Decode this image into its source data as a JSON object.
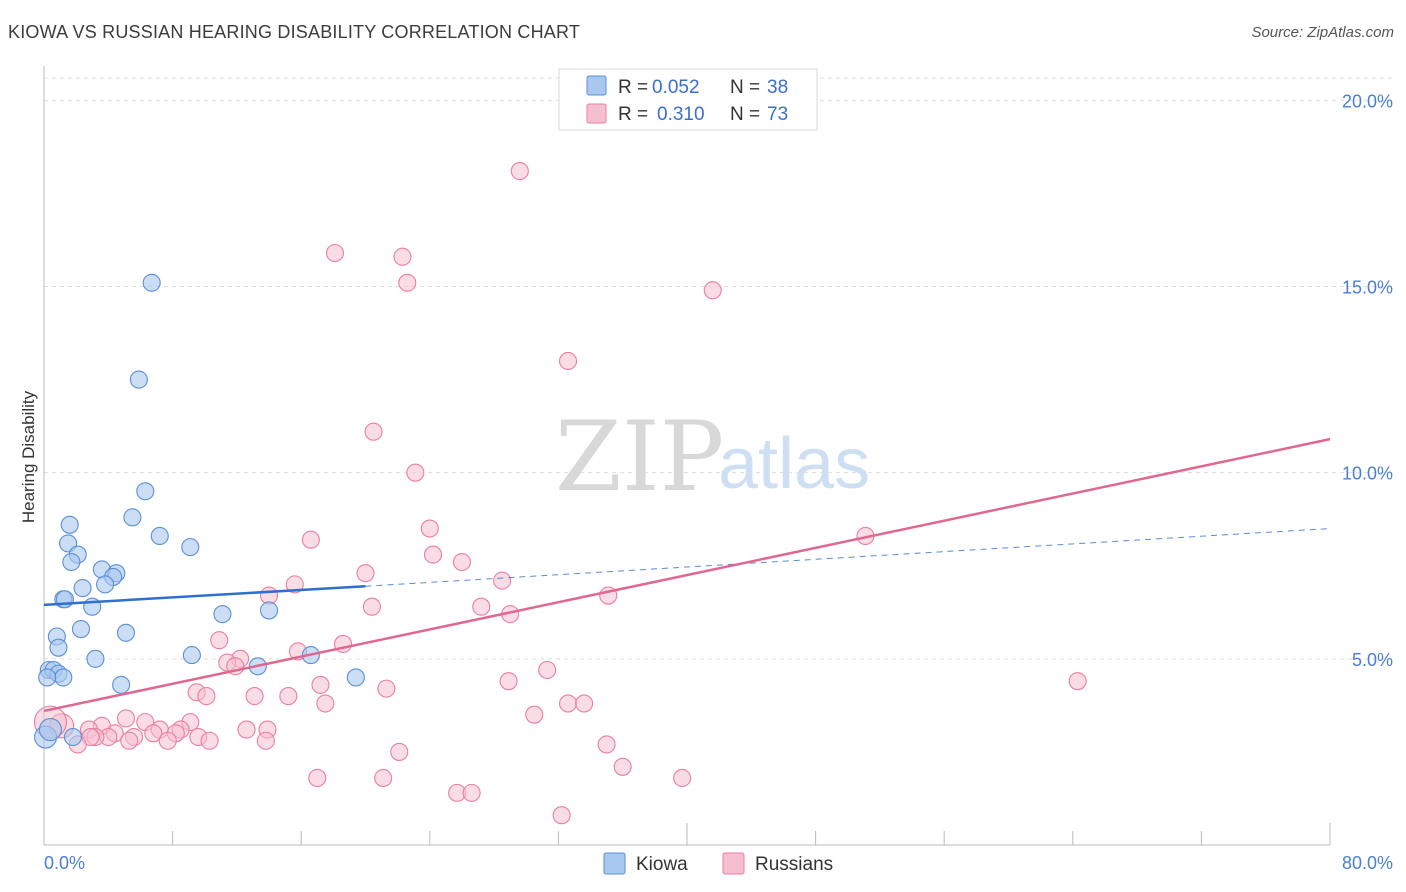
{
  "title": "KIOWA VS RUSSIAN HEARING DISABILITY CORRELATION CHART",
  "source": "Source: ZipAtlas.com",
  "watermark": {
    "zip": "ZIP",
    "atlas": "atlas"
  },
  "legend": {
    "kiowa": {
      "r_label": "R =",
      "r_value": "0.052",
      "n_label": "N =",
      "n_value": "38"
    },
    "russians": {
      "r_label": "R =",
      "r_value": "0.310",
      "n_label": "N =",
      "n_value": "73"
    }
  },
  "bottom_legend": {
    "kiowa": "Kiowa",
    "russians": "Russians"
  },
  "colors": {
    "kiowa_fill": "#a9c8f0",
    "kiowa_stroke": "#5b8fd6",
    "kiowa_line": "#2f6fcf",
    "russians_fill": "#f6bfd0",
    "russians_stroke": "#e87fa0",
    "russians_line": "#e06890",
    "grid": "#dddddd",
    "tick_label": "#4a7fd4"
  },
  "chart_data": {
    "type": "scatter",
    "title": "KIOWA VS RUSSIAN HEARING DISABILITY CORRELATION CHART",
    "xlabel": "",
    "ylabel": "Hearing Disability",
    "xlim": [
      0,
      80
    ],
    "ylim": [
      0,
      20.6
    ],
    "x_tick_labels": [
      "0.0%",
      "80.0%"
    ],
    "y_ticks": [
      5,
      10,
      15,
      20
    ],
    "y_tick_labels": [
      "5.0%",
      "10.0%",
      "15.0%",
      "20.0%"
    ],
    "grid": true,
    "legend_position": "top-center",
    "series": [
      {
        "name": "Kiowa",
        "r": 0.052,
        "n": 38,
        "trend": {
          "x": [
            0,
            20
          ],
          "y": [
            6.45,
            6.95
          ],
          "dashed_to": [
            80,
            8.5
          ]
        },
        "points": [
          [
            6.7,
            15.1
          ],
          [
            5.9,
            12.5
          ],
          [
            6.3,
            9.5
          ],
          [
            5.5,
            8.8
          ],
          [
            7.2,
            8.3
          ],
          [
            9.1,
            8.0
          ],
          [
            1.6,
            8.6
          ],
          [
            1.5,
            8.1
          ],
          [
            2.1,
            7.8
          ],
          [
            1.7,
            7.6
          ],
          [
            3.6,
            7.4
          ],
          [
            4.5,
            7.3
          ],
          [
            4.3,
            7.2
          ],
          [
            3.8,
            7.0
          ],
          [
            2.4,
            6.9
          ],
          [
            1.2,
            6.6
          ],
          [
            1.3,
            6.6
          ],
          [
            3.0,
            6.4
          ],
          [
            11.1,
            6.2
          ],
          [
            14.0,
            6.3
          ],
          [
            2.3,
            5.8
          ],
          [
            5.1,
            5.7
          ],
          [
            0.8,
            5.6
          ],
          [
            0.9,
            5.3
          ],
          [
            9.2,
            5.1
          ],
          [
            16.6,
            5.1
          ],
          [
            3.2,
            5.0
          ],
          [
            13.3,
            4.8
          ],
          [
            0.3,
            4.7
          ],
          [
            0.6,
            4.7
          ],
          [
            0.9,
            4.6
          ],
          [
            1.2,
            4.5
          ],
          [
            0.2,
            4.5
          ],
          [
            19.4,
            4.5
          ],
          [
            4.8,
            4.3
          ],
          [
            1.8,
            2.9
          ],
          [
            0.1,
            2.9
          ],
          [
            0.4,
            3.1
          ]
        ]
      },
      {
        "name": "Russians",
        "r": 0.31,
        "n": 73,
        "trend": {
          "x": [
            0,
            80
          ],
          "y": [
            3.6,
            10.9
          ]
        },
        "points": [
          [
            29.6,
            18.1
          ],
          [
            18.1,
            15.9
          ],
          [
            22.3,
            15.8
          ],
          [
            22.6,
            15.1
          ],
          [
            41.6,
            14.9
          ],
          [
            32.6,
            13.0
          ],
          [
            20.5,
            11.1
          ],
          [
            23.1,
            10.0
          ],
          [
            24.0,
            8.5
          ],
          [
            16.6,
            8.2
          ],
          [
            51.1,
            8.3
          ],
          [
            24.2,
            7.8
          ],
          [
            26.0,
            7.6
          ],
          [
            20.0,
            7.3
          ],
          [
            28.5,
            7.1
          ],
          [
            15.6,
            7.0
          ],
          [
            14.0,
            6.7
          ],
          [
            35.1,
            6.7
          ],
          [
            20.4,
            6.4
          ],
          [
            27.2,
            6.4
          ],
          [
            29.0,
            6.2
          ],
          [
            10.9,
            5.5
          ],
          [
            18.6,
            5.4
          ],
          [
            15.8,
            5.2
          ],
          [
            12.2,
            5.0
          ],
          [
            11.4,
            4.9
          ],
          [
            11.9,
            4.8
          ],
          [
            31.3,
            4.7
          ],
          [
            28.9,
            4.4
          ],
          [
            64.3,
            4.4
          ],
          [
            17.2,
            4.3
          ],
          [
            21.3,
            4.2
          ],
          [
            9.5,
            4.1
          ],
          [
            10.1,
            4.0
          ],
          [
            13.1,
            4.0
          ],
          [
            15.2,
            4.0
          ],
          [
            17.5,
            3.8
          ],
          [
            32.6,
            3.8
          ],
          [
            33.6,
            3.8
          ],
          [
            30.5,
            3.5
          ],
          [
            5.1,
            3.4
          ],
          [
            9.1,
            3.3
          ],
          [
            6.3,
            3.3
          ],
          [
            3.6,
            3.2
          ],
          [
            7.2,
            3.1
          ],
          [
            13.9,
            3.1
          ],
          [
            12.6,
            3.1
          ],
          [
            8.5,
            3.1
          ],
          [
            2.8,
            3.1
          ],
          [
            4.4,
            3.0
          ],
          [
            6.8,
            3.0
          ],
          [
            8.2,
            3.0
          ],
          [
            5.6,
            2.9
          ],
          [
            4.0,
            2.9
          ],
          [
            3.2,
            2.9
          ],
          [
            2.9,
            2.9
          ],
          [
            9.6,
            2.9
          ],
          [
            7.7,
            2.8
          ],
          [
            13.8,
            2.8
          ],
          [
            5.3,
            2.8
          ],
          [
            10.3,
            2.8
          ],
          [
            2.1,
            2.7
          ],
          [
            35.0,
            2.7
          ],
          [
            22.1,
            2.5
          ],
          [
            36.0,
            2.1
          ],
          [
            17.0,
            1.8
          ],
          [
            21.1,
            1.8
          ],
          [
            39.7,
            1.8
          ],
          [
            25.7,
            1.4
          ],
          [
            26.6,
            1.4
          ],
          [
            32.2,
            0.8
          ],
          [
            1.1,
            3.2
          ],
          [
            0.4,
            3.3
          ]
        ]
      }
    ]
  }
}
